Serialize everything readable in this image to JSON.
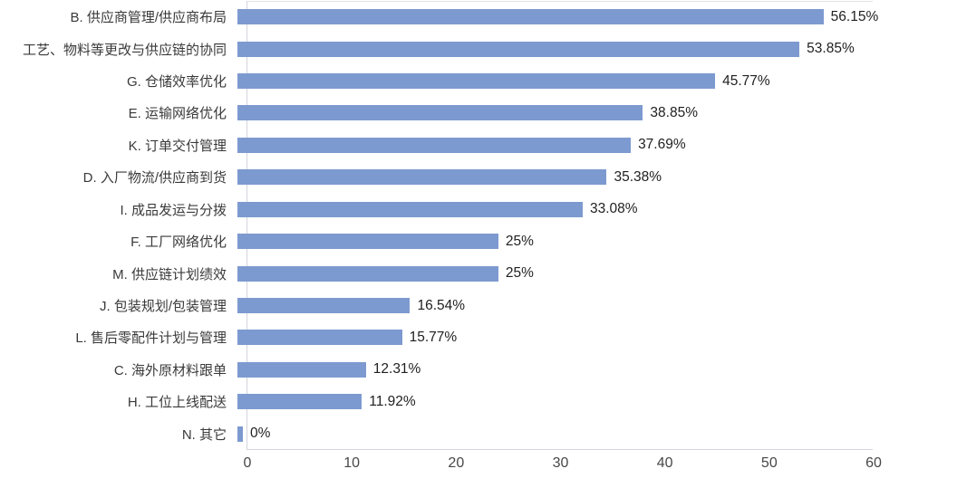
{
  "chart_data": {
    "type": "bar",
    "orientation": "horizontal",
    "title": "",
    "xlabel": "",
    "ylabel": "",
    "xlim": [
      0,
      60
    ],
    "x_ticks": [
      0,
      10,
      20,
      30,
      40,
      50,
      60
    ],
    "grid": false,
    "legend": "none",
    "bar_color": "#7d9ad0",
    "categories": [
      "B. 供应商管理/供应商布局",
      "工艺、物料等更改与供应链的协同",
      "G. 仓储效率优化",
      "E. 运输网络优化",
      "K. 订单交付管理",
      "D. 入厂物流/供应商到货",
      "I. 成品发运与分拨",
      "F. 工厂网络优化",
      "M. 供应链计划绩效",
      "J. 包装规划/包装管理",
      "L. 售后零配件计划与管理",
      "C. 海外原材料跟单",
      "H. 工位上线配送",
      "N. 其它"
    ],
    "values": [
      56.15,
      53.85,
      45.77,
      38.85,
      37.69,
      35.38,
      33.08,
      25,
      25,
      16.54,
      15.77,
      12.31,
      11.92,
      0
    ],
    "value_labels": [
      "56.15%",
      "53.85%",
      "45.77%",
      "38.85%",
      "37.69%",
      "35.38%",
      "33.08%",
      "25%",
      "25%",
      "16.54%",
      "15.77%",
      "12.31%",
      "11.92%",
      "0%"
    ]
  }
}
